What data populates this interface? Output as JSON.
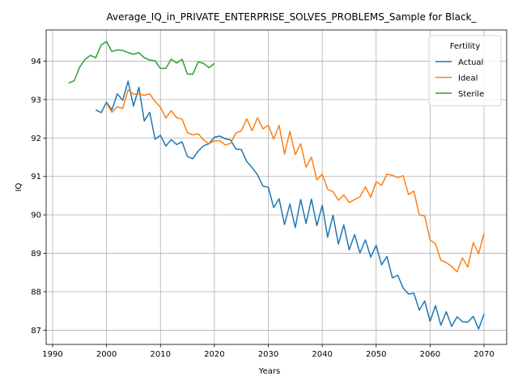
{
  "chart_data": {
    "type": "line",
    "title": "Average_IQ_in_PRIVATE_ENTERPRISE_SOLVES_PROBLEMS_Sample for Black_",
    "xlabel": "Years",
    "ylabel": "IQ",
    "xlim": [
      1988.8,
      2074.2
    ],
    "ylim": [
      86.63,
      94.81
    ],
    "xticks": [
      1990,
      2000,
      2010,
      2020,
      2030,
      2040,
      2050,
      2060,
      2070
    ],
    "yticks": [
      87,
      88,
      89,
      90,
      91,
      92,
      93,
      94
    ],
    "grid": true,
    "legend": {
      "title": "Fertility",
      "placement": "top-right"
    },
    "series": [
      {
        "name": "Actual",
        "color": "#1f77b4",
        "x": [
          1998,
          1999,
          2000,
          2001,
          2002,
          2003,
          2004,
          2005,
          2006,
          2007,
          2008,
          2009,
          2010,
          2011,
          2012,
          2013,
          2014,
          2015,
          2016,
          2017,
          2018,
          2019,
          2020,
          2021,
          2022,
          2023,
          2024,
          2025,
          2026,
          2027,
          2028,
          2029,
          2030,
          2031,
          2032,
          2033,
          2034,
          2035,
          2036,
          2037,
          2038,
          2039,
          2040,
          2041,
          2042,
          2043,
          2044,
          2045,
          2046,
          2047,
          2048,
          2049,
          2050,
          2051,
          2052,
          2053,
          2054,
          2055,
          2056,
          2057,
          2058,
          2059,
          2060,
          2061,
          2062,
          2063,
          2064,
          2065,
          2066,
          2067,
          2068,
          2069,
          2070
        ],
        "y": [
          92.73,
          92.66,
          92.93,
          92.73,
          93.15,
          92.98,
          93.48,
          92.83,
          93.32,
          92.44,
          92.67,
          91.97,
          92.07,
          91.79,
          91.96,
          91.83,
          91.9,
          91.52,
          91.46,
          91.66,
          91.8,
          91.85,
          92.02,
          92.05,
          91.98,
          91.95,
          91.71,
          91.7,
          91.39,
          91.23,
          91.04,
          90.75,
          90.72,
          90.19,
          90.42,
          89.75,
          90.28,
          89.67,
          90.4,
          89.78,
          90.41,
          89.72,
          90.25,
          89.42,
          89.99,
          89.24,
          89.74,
          89.09,
          89.49,
          89.01,
          89.35,
          88.9,
          89.21,
          88.7,
          88.92,
          88.36,
          88.43,
          88.1,
          87.94,
          87.96,
          87.52,
          87.76,
          87.23,
          87.64,
          87.13,
          87.48,
          87.1,
          87.35,
          87.22,
          87.21,
          87.36,
          87.03,
          87.42
        ]
      },
      {
        "name": "Ideal",
        "color": "#ff7f0e",
        "x": [
          2000,
          2001,
          2002,
          2003,
          2004,
          2005,
          2006,
          2007,
          2008,
          2009,
          2010,
          2011,
          2012,
          2013,
          2014,
          2015,
          2016,
          2017,
          2018,
          2019,
          2020,
          2021,
          2022,
          2023,
          2024,
          2025,
          2026,
          2027,
          2028,
          2029,
          2030,
          2031,
          2032,
          2033,
          2034,
          2035,
          2036,
          2037,
          2038,
          2039,
          2040,
          2041,
          2042,
          2043,
          2044,
          2045,
          2046,
          2047,
          2048,
          2049,
          2050,
          2051,
          2052,
          2053,
          2054,
          2055,
          2056,
          2057,
          2058,
          2059,
          2060,
          2061,
          2062,
          2063,
          2064,
          2065,
          2066,
          2067,
          2068,
          2069,
          2070
        ],
        "y": [
          92.9,
          92.67,
          92.81,
          92.77,
          93.25,
          93.14,
          93.15,
          93.11,
          93.15,
          92.95,
          92.8,
          92.52,
          92.71,
          92.53,
          92.49,
          92.14,
          92.08,
          92.11,
          91.95,
          91.85,
          91.93,
          91.93,
          91.82,
          91.86,
          92.13,
          92.19,
          92.5,
          92.19,
          92.53,
          92.24,
          92.33,
          91.97,
          92.33,
          91.58,
          92.17,
          91.57,
          91.85,
          91.24,
          91.5,
          90.91,
          91.06,
          90.67,
          90.6,
          90.38,
          90.52,
          90.32,
          90.4,
          90.47,
          90.73,
          90.46,
          90.86,
          90.77,
          91.06,
          91.03,
          90.97,
          91.02,
          90.53,
          90.62,
          90.0,
          89.97,
          89.35,
          89.25,
          88.82,
          88.76,
          88.66,
          88.52,
          88.88,
          88.64,
          89.28,
          88.99,
          89.52
        ]
      },
      {
        "name": "Sterile",
        "color": "#2ca02c",
        "x": [
          1993,
          1994,
          1995,
          1996,
          1997,
          1998,
          1999,
          2000,
          2001,
          2002,
          2003,
          2004,
          2005,
          2006,
          2007,
          2008,
          2009,
          2010,
          2011,
          2012,
          2013,
          2014,
          2015,
          2016,
          2017,
          2018,
          2019,
          2020
        ],
        "y": [
          93.43,
          93.49,
          93.84,
          94.04,
          94.15,
          94.09,
          94.42,
          94.51,
          94.25,
          94.29,
          94.28,
          94.22,
          94.18,
          94.22,
          94.09,
          94.03,
          94.01,
          93.81,
          93.81,
          94.05,
          93.95,
          94.05,
          93.66,
          93.66,
          93.98,
          93.94,
          93.83,
          93.94
        ]
      }
    ]
  }
}
